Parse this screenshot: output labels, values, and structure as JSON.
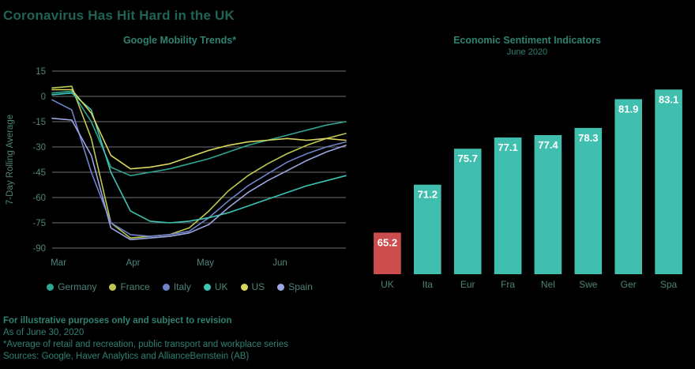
{
  "title": "Coronavirus Has Hit Hard in the UK",
  "footer": [
    "For illustrative purposes only and subject to revision",
    "As of June 30, 2020",
    "*Average of retail and recreation, public transport and workplace series",
    "Sources: Google, Haver Analytics and AllianceBernstein (AB)"
  ],
  "colors": {
    "background": "#000000",
    "title_text": "#1f6355",
    "chart_title_text": "#2f8172",
    "axis_text": "#4d8478",
    "footer_text": "#2f8172",
    "gridline": "#e3e3e3",
    "bar_value_text": "#ffffff"
  },
  "chart_data": [
    {
      "type": "line",
      "title": "Google Mobility Trends*",
      "ylabel": "7-Day Rolling Average",
      "ylim": [
        -90,
        15
      ],
      "yticks": [
        15,
        0,
        -15,
        -30,
        -45,
        -60,
        -75,
        -90
      ],
      "xticks": [
        {
          "label": "Mar",
          "pos": 0
        },
        {
          "label": "Apr",
          "pos": 0.254
        },
        {
          "label": "May",
          "pos": 0.5
        },
        {
          "label": "Jun",
          "pos": 0.754
        }
      ],
      "grid": true,
      "legend_position": "bottom",
      "series": [
        {
          "name": "Germany",
          "color": "#2fa491",
          "values": [
            2,
            3,
            -15,
            -42,
            -47,
            -45,
            -43,
            -40,
            -37,
            -33,
            -29,
            -26,
            -23,
            -20,
            -17,
            -15
          ]
        },
        {
          "name": "France",
          "color": "#bcc84e",
          "values": [
            5,
            6,
            -25,
            -75,
            -84,
            -83,
            -82,
            -78,
            -68,
            -56,
            -47,
            -40,
            -34,
            -29,
            -25,
            -22
          ]
        },
        {
          "name": "Italy",
          "color": "#6f83cb",
          "values": [
            -2,
            -8,
            -45,
            -75,
            -82,
            -83,
            -82,
            -80,
            -72,
            -62,
            -53,
            -46,
            -39,
            -34,
            -30,
            -27
          ]
        },
        {
          "name": "UK",
          "color": "#3cc4b4",
          "values": [
            1,
            2,
            -8,
            -45,
            -68,
            -74,
            -75,
            -74,
            -72,
            -69,
            -65,
            -61,
            -57,
            -53,
            -50,
            -47
          ]
        },
        {
          "name": "US",
          "color": "#d9d75a",
          "values": [
            4,
            4,
            -10,
            -35,
            -43,
            -42,
            -40,
            -36,
            -32,
            -29,
            -27,
            -26,
            -25,
            -26,
            -25,
            -26
          ]
        },
        {
          "name": "Spain",
          "color": "#9aa7e2",
          "values": [
            -13,
            -14,
            -35,
            -78,
            -85,
            -84,
            -83,
            -81,
            -76,
            -66,
            -57,
            -50,
            -44,
            -38,
            -33,
            -29
          ]
        }
      ]
    },
    {
      "type": "bar",
      "title": "Economic Sentiment Indicators",
      "subtitle": "June 2020",
      "categories": [
        "UK",
        "Ita",
        "Eur",
        "Fra",
        "Nel",
        "Swe",
        "Ger",
        "Spa"
      ],
      "values": [
        65.2,
        71.2,
        75.7,
        77.1,
        77.4,
        78.3,
        81.9,
        83.1
      ],
      "ylim": [
        60,
        86
      ],
      "bar_color": "#41bfae",
      "highlight": {
        "category": "UK",
        "color": "#cc4d4d"
      },
      "value_labels": true,
      "legend_position": "none"
    }
  ]
}
